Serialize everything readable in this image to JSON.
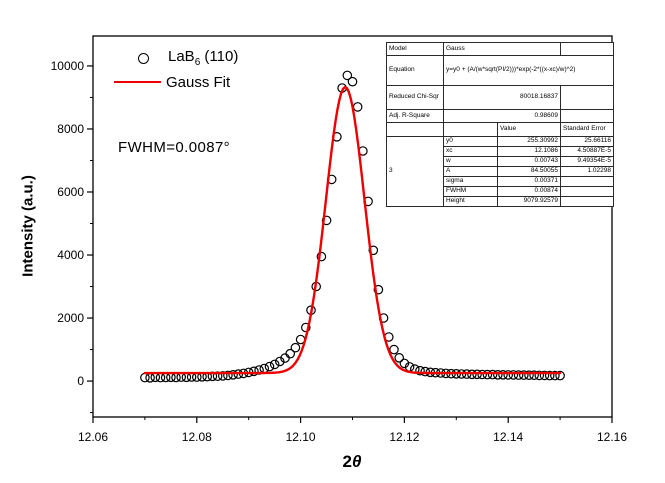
{
  "chart_data": {
    "type": "scatter",
    "title": "",
    "xlabel": "2θ",
    "xlabel_num": "2",
    "xlabel_sym": "θ",
    "ylabel": "Intensity (a.u.)",
    "xlim": [
      12.06,
      12.16
    ],
    "ylim": [
      -1140,
      10950
    ],
    "x_major_ticks": [
      12.06,
      12.08,
      12.1,
      12.12,
      12.14,
      12.16
    ],
    "x_tick_labels": [
      "12.06",
      "12.08",
      "12.10",
      "12.12",
      "12.14",
      "12.16"
    ],
    "x_minor_ticks": [
      12.07,
      12.09,
      12.11,
      12.13,
      12.15
    ],
    "y_major_ticks": [
      0,
      2000,
      4000,
      6000,
      8000,
      10000
    ],
    "y_tick_labels": [
      "0",
      "2000",
      "4000",
      "6000",
      "8000",
      "10000"
    ],
    "y_minor_ticks": [
      -1000,
      1000,
      3000,
      5000,
      7000,
      9000
    ],
    "grid": false,
    "legend_position": "top-left-inside",
    "series": [
      {
        "name": "LaB6 (110)",
        "type": "scatter",
        "marker": "open-circle",
        "color": "#000000",
        "x_start": 12.07,
        "x_step": 0.001,
        "y": [
          110,
          105,
          120,
          110,
          115,
          120,
          115,
          125,
          120,
          130,
          125,
          135,
          140,
          150,
          155,
          165,
          180,
          200,
          220,
          245,
          275,
          310,
          350,
          400,
          460,
          530,
          620,
          730,
          870,
          1060,
          1320,
          1700,
          2250,
          3000,
          3950,
          5100,
          6400,
          7750,
          9300,
          9700,
          9500,
          8700,
          7300,
          5700,
          4150,
          2900,
          2000,
          1400,
          1000,
          740,
          560,
          450,
          380,
          330,
          300,
          280,
          265,
          255,
          245,
          235,
          230,
          225,
          220,
          215,
          215,
          210,
          205,
          205,
          200,
          200,
          195,
          195,
          190,
          190,
          185,
          185,
          180,
          180,
          175,
          175,
          175
        ]
      },
      {
        "name": "Gauss Fit",
        "type": "line",
        "color": "#ee0000",
        "fit_model": "gauss",
        "equation": "y=y0 + (A/(w*sqrt(PI/2)))*exp(-2*((x-xc)/w)^2)",
        "params": {
          "y0": 255.30992,
          "xc": 12.1086,
          "w": 0.00743,
          "A": 84.50055
        },
        "x_range": [
          12.07,
          12.15
        ]
      }
    ]
  },
  "legend": {
    "items": [
      {
        "marker": "open-circle",
        "pre": "LaB",
        "sub": "6",
        "post": " (110)"
      },
      {
        "marker": "red-line",
        "label": "Gauss Fit",
        "color": "#ee0000"
      }
    ]
  },
  "annotation": {
    "fwhm": "FWHM=0.0087°"
  },
  "stats_table": {
    "rows_top": [
      {
        "label": "Model",
        "value": "Gauss",
        "align": "left",
        "span": 2
      },
      {
        "label": "Equation",
        "value": "y=y0 + (A/(w*sqrt(PI/2)))*exp(-2*((x-xc)/w)^2)",
        "align": "left",
        "span": 3
      },
      {
        "label": "Reduced Chi-Sqr",
        "value": "80018.16837",
        "align": "right",
        "span": 2
      },
      {
        "label": "Adj. R-Square",
        "value": "0.98609",
        "align": "right",
        "span": 2
      }
    ],
    "col_headers": [
      "Value",
      "Standard Error"
    ],
    "dataset_label": "3",
    "params": [
      {
        "name": "y0",
        "value": "255.30992",
        "se": "25.66116"
      },
      {
        "name": "xc",
        "value": "12.1086",
        "se": "4.50887E-5"
      },
      {
        "name": "w",
        "value": "0.00743",
        "se": "9.49354E-5"
      },
      {
        "name": "A",
        "value": "84.50055",
        "se": "1.02298"
      },
      {
        "name": "sigma",
        "value": "0.00371",
        "se": ""
      },
      {
        "name": "FWHM",
        "value": "0.00874",
        "se": ""
      },
      {
        "name": "Height",
        "value": "9079.92579",
        "se": ""
      }
    ]
  },
  "colors": {
    "fit_line": "#ee0000",
    "marker_stroke": "#000000",
    "axis": "#000000"
  }
}
